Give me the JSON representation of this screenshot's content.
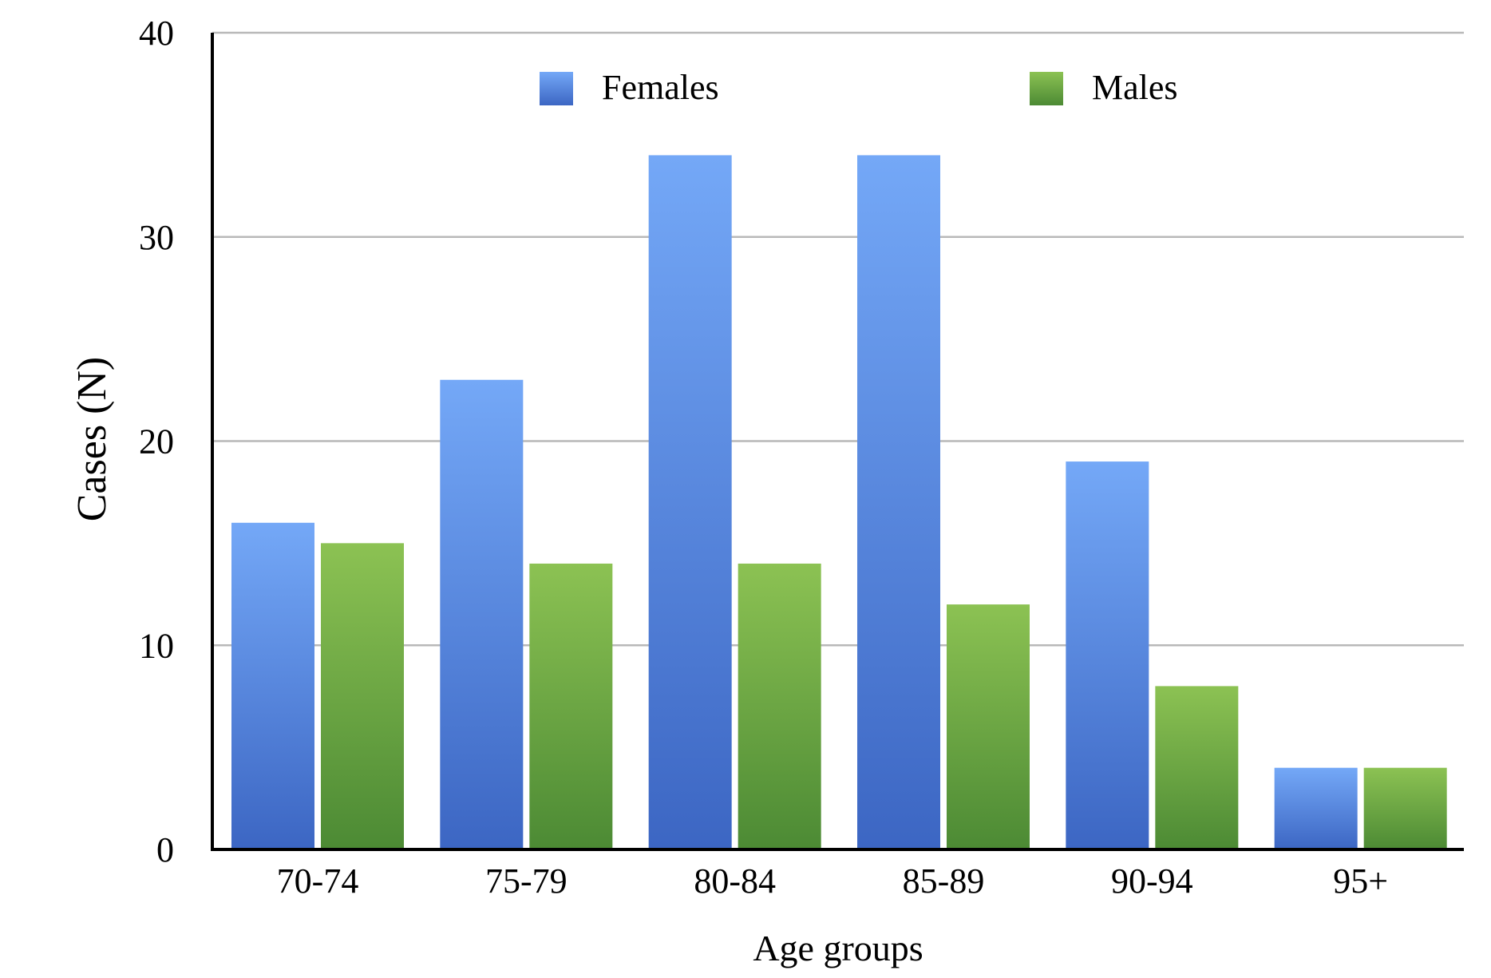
{
  "chart_data": {
    "type": "bar",
    "title": "",
    "xlabel": "Age groups",
    "ylabel": "Cases (N)",
    "categories": [
      "70-74",
      "75-79",
      "80-84",
      "85-89",
      "90-94",
      "95+"
    ],
    "series": [
      {
        "name": "Females",
        "values": [
          16,
          23,
          34,
          34,
          19,
          4
        ],
        "color": "#5b8fe0"
      },
      {
        "name": "Males",
        "values": [
          15,
          14,
          14,
          12,
          8,
          4
        ],
        "color": "#78b04a"
      }
    ],
    "ylim": [
      0,
      40
    ],
    "yticks": [
      0,
      10,
      20,
      30,
      40
    ],
    "grid": true,
    "legend_position": "top"
  }
}
